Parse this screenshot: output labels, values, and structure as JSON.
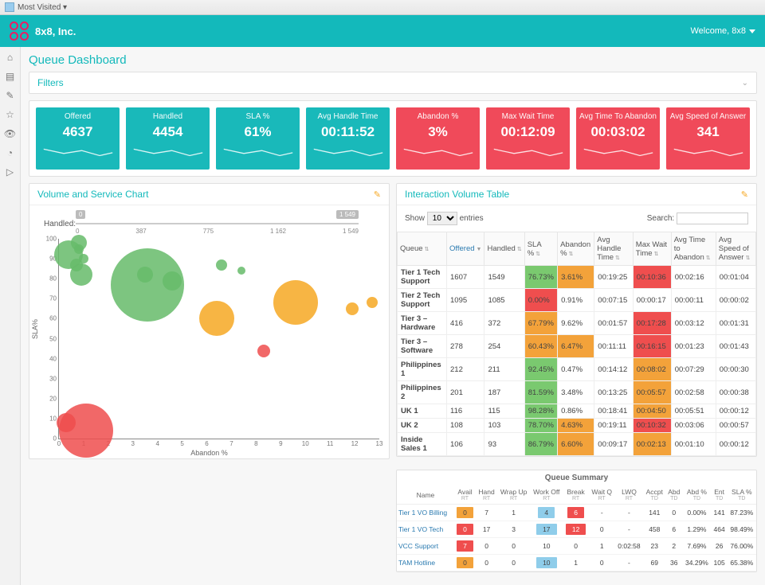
{
  "browser": {
    "bookmark_label": "Most Visited ▾"
  },
  "header": {
    "company": "8x8, Inc.",
    "welcome": "Welcome, 8x8"
  },
  "page": {
    "title": "Queue Dashboard"
  },
  "filters": {
    "title": "Filters"
  },
  "kpi_colors": {
    "teal": "#19b9ba",
    "red": "#f04a5a"
  },
  "kpis": [
    {
      "title": "Offered",
      "value": "4637",
      "tone": "teal"
    },
    {
      "title": "Handled",
      "value": "4454",
      "tone": "teal"
    },
    {
      "title": "SLA %",
      "value": "61%",
      "tone": "teal"
    },
    {
      "title": "Avg Handle Time",
      "value": "00:11:52",
      "tone": "teal"
    },
    {
      "title": "Abandon %",
      "value": "3%",
      "tone": "red"
    },
    {
      "title": "Max Wait Time",
      "value": "00:12:09",
      "tone": "red"
    },
    {
      "title": "Avg Time To Abandon",
      "value": "00:03:02",
      "tone": "red"
    },
    {
      "title": "Avg Speed of Answer",
      "value": "341",
      "tone": "red"
    }
  ],
  "volume_chart": {
    "title": "Volume and Service Chart",
    "slider_label": "Handled:",
    "slider_min_badge": "0",
    "slider_max_badge": "1 549",
    "slider_ticks": [
      "0",
      "387",
      "775",
      "1 162",
      "1 549"
    ],
    "x_axis": {
      "label": "Abandon %",
      "min": 0,
      "max": 13,
      "ticks": [
        0,
        1,
        2,
        3,
        4,
        5,
        6,
        7,
        8,
        9,
        10,
        11,
        12,
        13
      ]
    },
    "y_axis": {
      "label": "SLA%",
      "min": 0,
      "max": 100,
      "ticks": [
        0,
        10,
        20,
        30,
        40,
        50,
        60,
        70,
        80,
        90,
        100
      ]
    },
    "bubbles": [
      {
        "x": 0.4,
        "y": 92,
        "r": 18,
        "color": "#66bb6a"
      },
      {
        "x": 0.8,
        "y": 98,
        "r": 10,
        "color": "#66bb6a"
      },
      {
        "x": 0.7,
        "y": 87,
        "r": 8,
        "color": "#66bb6a"
      },
      {
        "x": 0.9,
        "y": 82,
        "r": 14,
        "color": "#66bb6a"
      },
      {
        "x": 0.8,
        "y": 95,
        "r": 6,
        "color": "#66bb6a"
      },
      {
        "x": 1.0,
        "y": 90,
        "r": 6,
        "color": "#66bb6a"
      },
      {
        "x": 3.6,
        "y": 77,
        "r": 46,
        "color": "#66bb6a"
      },
      {
        "x": 3.5,
        "y": 82,
        "r": 10,
        "color": "#66bb6a"
      },
      {
        "x": 4.6,
        "y": 79,
        "r": 12,
        "color": "#66bb6a"
      },
      {
        "x": 6.4,
        "y": 60,
        "r": 22,
        "color": "#f6a823"
      },
      {
        "x": 6.6,
        "y": 87,
        "r": 7,
        "color": "#66bb6a"
      },
      {
        "x": 7.4,
        "y": 84,
        "r": 5,
        "color": "#66bb6a"
      },
      {
        "x": 8.3,
        "y": 44,
        "r": 8,
        "color": "#ef4e4e"
      },
      {
        "x": 9.6,
        "y": 68,
        "r": 28,
        "color": "#f6a823"
      },
      {
        "x": 11.9,
        "y": 65,
        "r": 8,
        "color": "#f6a823"
      },
      {
        "x": 12.7,
        "y": 68,
        "r": 7,
        "color": "#f6a823"
      },
      {
        "x": 1.1,
        "y": 4,
        "r": 34,
        "color": "#ef4e4e"
      },
      {
        "x": 0.3,
        "y": 8,
        "r": 12,
        "color": "#ef4e4e"
      }
    ]
  },
  "interaction_table": {
    "title": "Interaction Volume Table",
    "show_label": "Show",
    "entries_label": "entries",
    "entries_value": "10",
    "search_label": "Search:",
    "columns": [
      "Queue",
      "Offered",
      "Handled",
      "SLA %",
      "Abandon %",
      "Avg Handle Time",
      "Max Wait Time",
      "Avg Time to Abandon",
      "Avg Speed of Answer"
    ],
    "sorted_col": "Offered",
    "rows": [
      {
        "queue": "Tier 1 Tech Support",
        "offered": "1607",
        "handled": "1549",
        "sla": {
          "v": "76.73%",
          "cls": "cell-green"
        },
        "abandon": {
          "v": "3.61%",
          "cls": "cell-orange"
        },
        "aht": "00:19:25",
        "mwt": {
          "v": "00:10:36",
          "cls": "cell-red"
        },
        "atta": "00:02:16",
        "asa": "00:01:04"
      },
      {
        "queue": "Tier 2 Tech Support",
        "offered": "1095",
        "handled": "1085",
        "sla": {
          "v": "0.00%",
          "cls": "cell-red"
        },
        "abandon": {
          "v": "0.91%",
          "cls": ""
        },
        "aht": "00:07:15",
        "mwt": {
          "v": "00:00:17",
          "cls": ""
        },
        "atta": "00:00:11",
        "asa": "00:00:02"
      },
      {
        "queue": "Tier 3 – Hardware",
        "offered": "416",
        "handled": "372",
        "sla": {
          "v": "67.79%",
          "cls": "cell-orange"
        },
        "abandon": {
          "v": "9.62%",
          "cls": ""
        },
        "aht": "00:01:57",
        "mwt": {
          "v": "00:17:28",
          "cls": "cell-red"
        },
        "atta": "00:03:12",
        "asa": "00:01:31"
      },
      {
        "queue": "Tier 3 – Software",
        "offered": "278",
        "handled": "254",
        "sla": {
          "v": "60.43%",
          "cls": "cell-orange"
        },
        "abandon": {
          "v": "6.47%",
          "cls": "cell-orange"
        },
        "aht": "00:11:11",
        "mwt": {
          "v": "00:16:15",
          "cls": "cell-red"
        },
        "atta": "00:01:23",
        "asa": "00:01:43"
      },
      {
        "queue": "Philippines 1",
        "offered": "212",
        "handled": "211",
        "sla": {
          "v": "92.45%",
          "cls": "cell-green"
        },
        "abandon": {
          "v": "0.47%",
          "cls": ""
        },
        "aht": "00:14:12",
        "mwt": {
          "v": "00:08:02",
          "cls": "cell-orange"
        },
        "atta": "00:07:29",
        "asa": "00:00:30"
      },
      {
        "queue": "Philippines 2",
        "offered": "201",
        "handled": "187",
        "sla": {
          "v": "81.59%",
          "cls": "cell-green"
        },
        "abandon": {
          "v": "3.48%",
          "cls": ""
        },
        "aht": "00:13:25",
        "mwt": {
          "v": "00:05:57",
          "cls": "cell-orange"
        },
        "atta": "00:02:58",
        "asa": "00:00:38"
      },
      {
        "queue": "UK 1",
        "offered": "116",
        "handled": "115",
        "sla": {
          "v": "98.28%",
          "cls": "cell-green"
        },
        "abandon": {
          "v": "0.86%",
          "cls": ""
        },
        "aht": "00:18:41",
        "mwt": {
          "v": "00:04:50",
          "cls": "cell-orange"
        },
        "atta": "00:05:51",
        "asa": "00:00:12"
      },
      {
        "queue": "UK 2",
        "offered": "108",
        "handled": "103",
        "sla": {
          "v": "78.70%",
          "cls": "cell-green"
        },
        "abandon": {
          "v": "4.63%",
          "cls": "cell-orange"
        },
        "aht": "00:19:11",
        "mwt": {
          "v": "00:10:32",
          "cls": "cell-red"
        },
        "atta": "00:03:06",
        "asa": "00:00:57"
      },
      {
        "queue": "Inside Sales 1",
        "offered": "106",
        "handled": "93",
        "sla": {
          "v": "86.79%",
          "cls": "cell-green"
        },
        "abandon": {
          "v": "6.60%",
          "cls": "cell-orange"
        },
        "aht": "00:09:17",
        "mwt": {
          "v": "00:02:13",
          "cls": "cell-orange"
        },
        "atta": "00:01:10",
        "asa": "00:00:12"
      }
    ]
  },
  "queue_summary": {
    "title": "Queue Summary",
    "columns": [
      {
        "h": "Name",
        "s": ""
      },
      {
        "h": "Avail",
        "s": "RT"
      },
      {
        "h": "Hand",
        "s": "RT"
      },
      {
        "h": "Wrap Up",
        "s": "RT"
      },
      {
        "h": "Work Off",
        "s": "RT"
      },
      {
        "h": "Break",
        "s": "RT"
      },
      {
        "h": "Wait Q",
        "s": "RT"
      },
      {
        "h": "LWQ",
        "s": "RT"
      },
      {
        "h": "Accpt",
        "s": "TD"
      },
      {
        "h": "Abd",
        "s": "TD"
      },
      {
        "h": "Abd %",
        "s": "TD"
      },
      {
        "h": "Ent",
        "s": "TD"
      },
      {
        "h": "SLA %",
        "s": "TD"
      }
    ],
    "rows": [
      {
        "name": "Tier 1 VO Billing",
        "cells": [
          {
            "v": "0",
            "cls": "box-orange"
          },
          {
            "v": "7"
          },
          {
            "v": "1"
          },
          {
            "v": "4",
            "cls": "box-blue"
          },
          {
            "v": "6",
            "cls": "box-red"
          },
          {
            "v": "-"
          },
          {
            "v": "-"
          },
          {
            "v": "141"
          },
          {
            "v": "0"
          },
          {
            "v": "0.00%"
          },
          {
            "v": "141"
          },
          {
            "v": "87.23%"
          }
        ]
      },
      {
        "name": "Tier 1 VO Tech",
        "cells": [
          {
            "v": "0",
            "cls": "box-red"
          },
          {
            "v": "17"
          },
          {
            "v": "3"
          },
          {
            "v": "17",
            "cls": "box-blue"
          },
          {
            "v": "12",
            "cls": "box-red"
          },
          {
            "v": "0"
          },
          {
            "v": "-"
          },
          {
            "v": "458"
          },
          {
            "v": "6"
          },
          {
            "v": "1.29%"
          },
          {
            "v": "464"
          },
          {
            "v": "98.49%"
          }
        ]
      },
      {
        "name": "VCC Support",
        "cells": [
          {
            "v": "7",
            "cls": "box-red"
          },
          {
            "v": "0"
          },
          {
            "v": "0"
          },
          {
            "v": "10"
          },
          {
            "v": "0"
          },
          {
            "v": "1"
          },
          {
            "v": "0:02:58"
          },
          {
            "v": "23"
          },
          {
            "v": "2"
          },
          {
            "v": "7.69%"
          },
          {
            "v": "26"
          },
          {
            "v": "76.00%"
          }
        ]
      },
      {
        "name": "TAM Hotline",
        "cells": [
          {
            "v": "0",
            "cls": "box-orange"
          },
          {
            "v": "0"
          },
          {
            "v": "0"
          },
          {
            "v": "10",
            "cls": "box-blue"
          },
          {
            "v": "1"
          },
          {
            "v": "0"
          },
          {
            "v": "-"
          },
          {
            "v": "69"
          },
          {
            "v": "36"
          },
          {
            "v": "34.29%"
          },
          {
            "v": "105"
          },
          {
            "v": "65.38%"
          }
        ]
      }
    ]
  }
}
